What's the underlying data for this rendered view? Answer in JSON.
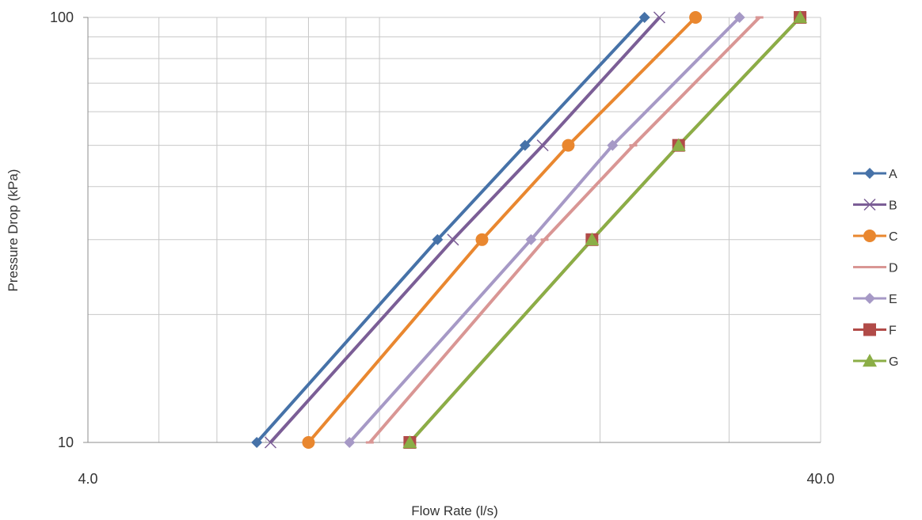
{
  "chart_data": {
    "type": "line",
    "title": "",
    "xlabel": "Flow Rate (l/s)",
    "ylabel": "Pressure Drop (kPa)",
    "x_scale": "log",
    "y_scale": "log",
    "xlim": [
      4.0,
      40.0
    ],
    "ylim": [
      10,
      100
    ],
    "x_tick_labels": [
      "4.0",
      "40.0"
    ],
    "y_tick_labels": [
      "10",
      "100"
    ],
    "grid": true,
    "legend_position": "right",
    "series": [
      {
        "name": "A",
        "color": "#4672A8",
        "marker": "diamond",
        "points": [
          {
            "x": 6.8,
            "y": 10
          },
          {
            "x": 12.0,
            "y": 30
          },
          {
            "x": 15.8,
            "y": 50
          },
          {
            "x": 23.0,
            "y": 100
          }
        ]
      },
      {
        "name": "B",
        "color": "#7B5E96",
        "marker": "x",
        "points": [
          {
            "x": 7.1,
            "y": 10
          },
          {
            "x": 12.6,
            "y": 30
          },
          {
            "x": 16.7,
            "y": 50
          },
          {
            "x": 24.1,
            "y": 100
          }
        ]
      },
      {
        "name": "C",
        "color": "#E9872F",
        "marker": "circle",
        "points": [
          {
            "x": 8.0,
            "y": 10
          },
          {
            "x": 13.8,
            "y": 30
          },
          {
            "x": 18.1,
            "y": 50
          },
          {
            "x": 27.0,
            "y": 100
          }
        ]
      },
      {
        "name": "D",
        "color": "#D99694",
        "marker": "dash",
        "points": [
          {
            "x": 9.7,
            "y": 10
          },
          {
            "x": 16.8,
            "y": 30
          },
          {
            "x": 22.2,
            "y": 50
          },
          {
            "x": 33.0,
            "y": 100
          }
        ]
      },
      {
        "name": "E",
        "color": "#A699C6",
        "marker": "diamond",
        "points": [
          {
            "x": 9.1,
            "y": 10
          },
          {
            "x": 16.1,
            "y": 30
          },
          {
            "x": 20.8,
            "y": 50
          },
          {
            "x": 31.0,
            "y": 100
          }
        ]
      },
      {
        "name": "F",
        "color": "#B14B48",
        "marker": "square",
        "points": [
          {
            "x": 11.0,
            "y": 10
          },
          {
            "x": 19.5,
            "y": 30
          },
          {
            "x": 25.6,
            "y": 50
          },
          {
            "x": 37.5,
            "y": 100
          }
        ]
      },
      {
        "name": "G",
        "color": "#8BAE46",
        "marker": "triangle",
        "points": [
          {
            "x": 11.0,
            "y": 10
          },
          {
            "x": 19.5,
            "y": 30
          },
          {
            "x": 25.6,
            "y": 50
          },
          {
            "x": 37.5,
            "y": 100
          }
        ]
      }
    ]
  }
}
